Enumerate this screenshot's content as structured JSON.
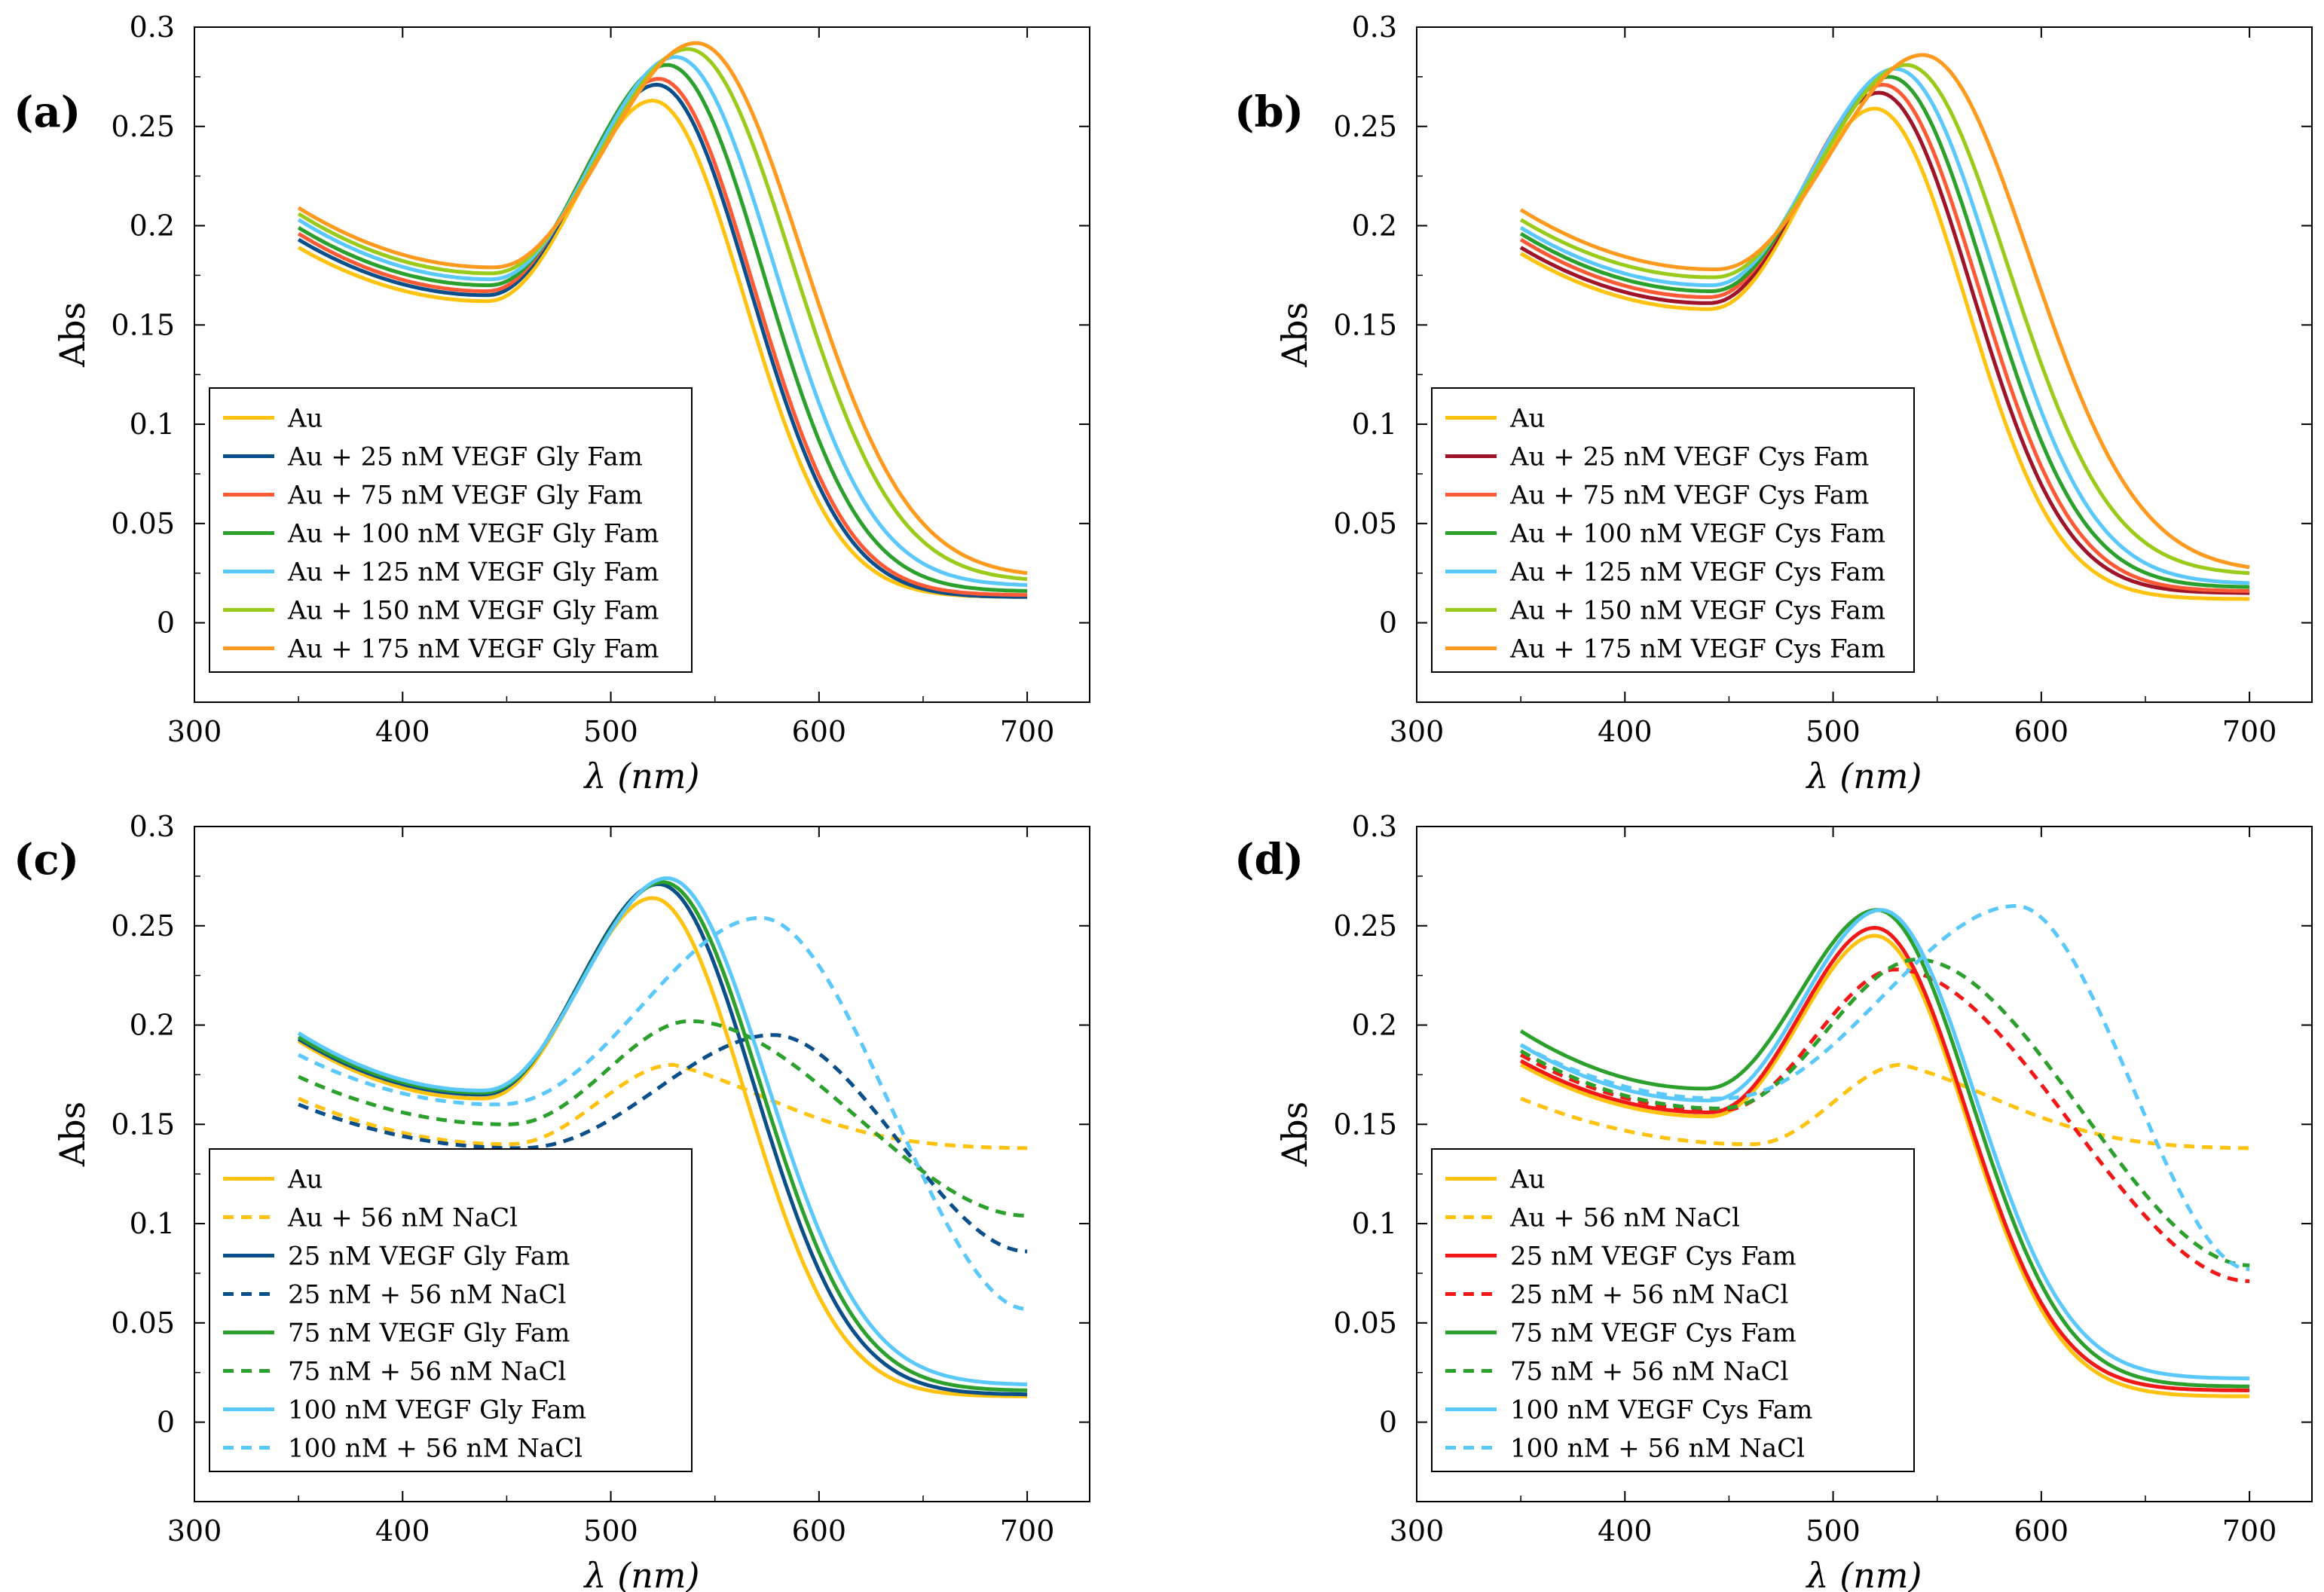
{
  "colors": {
    "gold": "#FFC20E",
    "navy": "#0B4F8A",
    "orange_red": "#FF5A36",
    "green": "#2CA02C",
    "sky": "#5AC8FA",
    "lime": "#9BCB1A",
    "orange": "#FF9A1F",
    "maroon": "#A0142A",
    "red": "#F21818"
  },
  "chart_data": [
    {
      "type": "line",
      "label": "(a)",
      "xlabel": "λ (nm)",
      "ylabel": "Abs",
      "xlim": [
        300,
        730
      ],
      "ylim": [
        -0.04,
        0.3
      ],
      "xticks": [
        "300",
        "400",
        "500",
        "600",
        "700"
      ],
      "yticks": [
        "0",
        "0.05",
        "0.1",
        "0.15",
        "0.2",
        "0.25",
        "0.3"
      ],
      "legend_position": "bottom-left",
      "series": [
        {
          "name": "Au",
          "color": "#FFC20E",
          "dash": false,
          "start": 0.189,
          "min": 0.162,
          "min_x": 440,
          "peak": 0.263,
          "peak_x": 520,
          "end": 0.013
        },
        {
          "name": "Au + 25 nM VEGF Gly Fam",
          "color": "#0B4F8A",
          "dash": false,
          "start": 0.193,
          "min": 0.165,
          "min_x": 440,
          "peak": 0.271,
          "peak_x": 522,
          "end": 0.013
        },
        {
          "name": "Au + 75 nM VEGF Gly Fam",
          "color": "#FF5A36",
          "dash": false,
          "start": 0.196,
          "min": 0.167,
          "min_x": 440,
          "peak": 0.274,
          "peak_x": 523,
          "end": 0.014
        },
        {
          "name": "Au + 100 nM VEGF Gly Fam",
          "color": "#2CA02C",
          "dash": false,
          "start": 0.199,
          "min": 0.17,
          "min_x": 441,
          "peak": 0.281,
          "peak_x": 527,
          "end": 0.016
        },
        {
          "name": "Au + 125 nM VEGF Gly Fam",
          "color": "#5AC8FA",
          "dash": false,
          "start": 0.203,
          "min": 0.173,
          "min_x": 442,
          "peak": 0.285,
          "peak_x": 531,
          "end": 0.019
        },
        {
          "name": "Au + 150 nM VEGF Gly Fam",
          "color": "#9BCB1A",
          "dash": false,
          "start": 0.206,
          "min": 0.176,
          "min_x": 442,
          "peak": 0.289,
          "peak_x": 537,
          "end": 0.022
        },
        {
          "name": "Au + 175 nM VEGF Gly Fam",
          "color": "#FF9A1F",
          "dash": false,
          "start": 0.209,
          "min": 0.179,
          "min_x": 443,
          "peak": 0.292,
          "peak_x": 541,
          "end": 0.025
        }
      ]
    },
    {
      "type": "line",
      "label": "(b)",
      "xlabel": "λ (nm)",
      "ylabel": "Abs",
      "xlim": [
        300,
        730
      ],
      "ylim": [
        -0.04,
        0.3
      ],
      "xticks": [
        "300",
        "400",
        "500",
        "600",
        "700"
      ],
      "yticks": [
        "0",
        "0.05",
        "0.1",
        "0.15",
        "0.2",
        "0.25",
        "0.3"
      ],
      "legend_position": "bottom-left",
      "series": [
        {
          "name": "Au",
          "color": "#FFC20E",
          "dash": false,
          "start": 0.186,
          "min": 0.158,
          "min_x": 440,
          "peak": 0.259,
          "peak_x": 520,
          "end": 0.012
        },
        {
          "name": "Au + 25 nM VEGF Cys Fam",
          "color": "#A0142A",
          "dash": false,
          "start": 0.189,
          "min": 0.161,
          "min_x": 440,
          "peak": 0.267,
          "peak_x": 522,
          "end": 0.015
        },
        {
          "name": "Au + 75 nM VEGF Cys Fam",
          "color": "#FF5A36",
          "dash": false,
          "start": 0.193,
          "min": 0.164,
          "min_x": 440,
          "peak": 0.271,
          "peak_x": 524,
          "end": 0.016
        },
        {
          "name": "Au + 100 nM VEGF Cys Fam",
          "color": "#2CA02C",
          "dash": false,
          "start": 0.196,
          "min": 0.167,
          "min_x": 441,
          "peak": 0.275,
          "peak_x": 527,
          "end": 0.018
        },
        {
          "name": "Au + 125 nM VEGF Cys Fam",
          "color": "#5AC8FA",
          "dash": false,
          "start": 0.199,
          "min": 0.17,
          "min_x": 441,
          "peak": 0.279,
          "peak_x": 530,
          "end": 0.02
        },
        {
          "name": "Au + 150 nM VEGF Cys Fam",
          "color": "#9BCB1A",
          "dash": false,
          "start": 0.203,
          "min": 0.174,
          "min_x": 442,
          "peak": 0.281,
          "peak_x": 535,
          "end": 0.025
        },
        {
          "name": "Au + 175 nM VEGF Cys Fam",
          "color": "#FF9A1F",
          "dash": false,
          "start": 0.208,
          "min": 0.178,
          "min_x": 443,
          "peak": 0.286,
          "peak_x": 543,
          "end": 0.028
        }
      ]
    },
    {
      "type": "line",
      "label": "(c)",
      "xlabel": "λ (nm)",
      "ylabel": "Abs",
      "xlim": [
        300,
        730
      ],
      "ylim": [
        -0.04,
        0.3
      ],
      "xticks": [
        "300",
        "400",
        "500",
        "600",
        "700"
      ],
      "yticks": [
        "0",
        "0.05",
        "0.1",
        "0.15",
        "0.2",
        "0.25",
        "0.3"
      ],
      "legend_position": "bottom-left",
      "series": [
        {
          "name": "Au",
          "color": "#FFC20E",
          "dash": false,
          "start": 0.192,
          "min": 0.163,
          "min_x": 438,
          "peak": 0.264,
          "peak_x": 520,
          "end": 0.013
        },
        {
          "name": "Au + 56 nM NaCl",
          "color": "#FFC20E",
          "dash": true,
          "start": 0.163,
          "min": 0.14,
          "min_x": 450,
          "peak": 0.18,
          "peak_x": 530,
          "end": 0.138,
          "tail_mode": "plateau"
        },
        {
          "name": "25 nM VEGF Gly Fam",
          "color": "#0B4F8A",
          "dash": false,
          "start": 0.193,
          "min": 0.165,
          "min_x": 438,
          "peak": 0.271,
          "peak_x": 523,
          "end": 0.014
        },
        {
          "name": "25 nM + 56 nM NaCl",
          "color": "#0B4F8A",
          "dash": true,
          "start": 0.16,
          "min": 0.138,
          "min_x": 455,
          "peak": 0.195,
          "peak_x": 578,
          "end": 0.086,
          "tail_mode": "broad"
        },
        {
          "name": "75 nM VEGF Gly Fam",
          "color": "#2CA02C",
          "dash": false,
          "start": 0.194,
          "min": 0.166,
          "min_x": 438,
          "peak": 0.272,
          "peak_x": 525,
          "end": 0.016
        },
        {
          "name": "75 nM + 56 nM NaCl",
          "color": "#2CA02C",
          "dash": true,
          "start": 0.174,
          "min": 0.15,
          "min_x": 450,
          "peak": 0.202,
          "peak_x": 538,
          "end": 0.104,
          "tail_mode": "broad"
        },
        {
          "name": "100 nM VEGF Gly Fam",
          "color": "#5AC8FA",
          "dash": false,
          "start": 0.196,
          "min": 0.167,
          "min_x": 438,
          "peak": 0.274,
          "peak_x": 527,
          "end": 0.019
        },
        {
          "name": "100 nM + 56 nM NaCl",
          "color": "#5AC8FA",
          "dash": true,
          "start": 0.185,
          "min": 0.16,
          "min_x": 445,
          "peak": 0.254,
          "peak_x": 572,
          "end": 0.057,
          "tail_mode": "broad"
        }
      ]
    },
    {
      "type": "line",
      "label": "(d)",
      "xlabel": "λ (nm)",
      "ylabel": "Abs",
      "xlim": [
        300,
        730
      ],
      "ylim": [
        -0.04,
        0.3
      ],
      "xticks": [
        "300",
        "400",
        "500",
        "600",
        "700"
      ],
      "yticks": [
        "0",
        "0.05",
        "0.1",
        "0.15",
        "0.2",
        "0.25",
        "0.3"
      ],
      "legend_position": "bottom-left",
      "series": [
        {
          "name": "Au",
          "color": "#FFC20E",
          "dash": false,
          "start": 0.18,
          "min": 0.154,
          "min_x": 440,
          "peak": 0.245,
          "peak_x": 520,
          "end": 0.013
        },
        {
          "name": "Au + 56 nM NaCl",
          "color": "#FFC20E",
          "dash": true,
          "start": 0.163,
          "min": 0.14,
          "min_x": 460,
          "peak": 0.18,
          "peak_x": 533,
          "end": 0.138,
          "tail_mode": "plateau"
        },
        {
          "name": "25 nM VEGF Cys Fam",
          "color": "#F21818",
          "dash": false,
          "start": 0.182,
          "min": 0.156,
          "min_x": 440,
          "peak": 0.249,
          "peak_x": 520,
          "end": 0.016
        },
        {
          "name": "25 nM + 56 nM NaCl",
          "color": "#F21818",
          "dash": true,
          "start": 0.185,
          "min": 0.157,
          "min_x": 445,
          "peak": 0.228,
          "peak_x": 530,
          "end": 0.071,
          "tail_mode": "broad"
        },
        {
          "name": "75 nM VEGF Cys Fam",
          "color": "#2CA02C",
          "dash": false,
          "start": 0.197,
          "min": 0.168,
          "min_x": 438,
          "peak": 0.258,
          "peak_x": 521,
          "end": 0.018
        },
        {
          "name": "75 nM + 56 nM NaCl",
          "color": "#2CA02C",
          "dash": true,
          "start": 0.187,
          "min": 0.158,
          "min_x": 445,
          "peak": 0.233,
          "peak_x": 540,
          "end": 0.079,
          "tail_mode": "broad"
        },
        {
          "name": "100 nM VEGF Cys Fam",
          "color": "#5AC8FA",
          "dash": false,
          "start": 0.19,
          "min": 0.162,
          "min_x": 440,
          "peak": 0.258,
          "peak_x": 523,
          "end": 0.022
        },
        {
          "name": "100 nM + 56 nM NaCl",
          "color": "#5AC8FA",
          "dash": true,
          "start": 0.19,
          "min": 0.163,
          "min_x": 445,
          "peak": 0.26,
          "peak_x": 588,
          "end": 0.077,
          "tail_mode": "broad"
        }
      ]
    }
  ]
}
